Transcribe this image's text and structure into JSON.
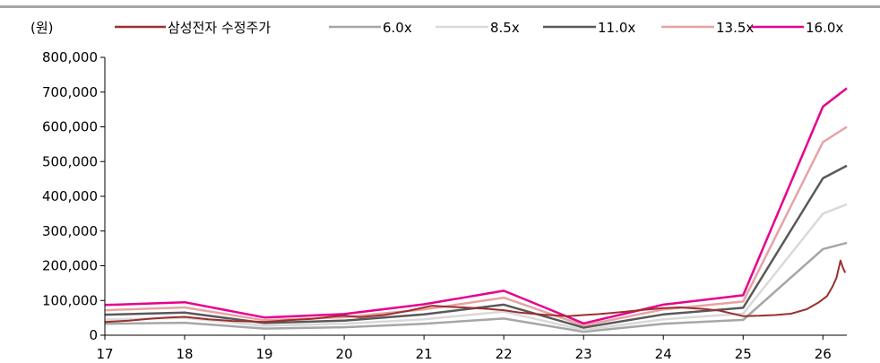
{
  "chart_data": {
    "type": "line",
    "unit_label": "(원)",
    "x_ticks": [
      "17",
      "18",
      "19",
      "20",
      "21",
      "22",
      "23",
      "24",
      "25",
      "26"
    ],
    "y_ticks": [
      "0",
      "100,000",
      "200,000",
      "300,000",
      "400,000",
      "500,000",
      "600,000",
      "700,000",
      "800,000"
    ],
    "ylim": [
      0,
      800000
    ],
    "xlim": [
      17,
      26.3
    ],
    "grid": false,
    "legend_position": "top",
    "series": [
      {
        "name": "삼성전자 수정주가",
        "color": "#9b2f2f",
        "x": [
          17.0,
          17.3,
          17.6,
          17.8,
          18.0,
          18.3,
          18.6,
          18.9,
          19.0,
          19.3,
          19.6,
          19.9,
          20.0,
          20.2,
          20.5,
          20.8,
          21.0,
          21.1,
          21.3,
          21.5,
          21.8,
          22.0,
          22.2,
          22.5,
          22.8,
          23.0,
          23.2,
          23.5,
          23.7,
          24.0,
          24.2,
          24.5,
          24.7,
          25.0,
          25.2,
          25.4,
          25.6,
          25.8,
          25.95,
          26.05,
          26.12,
          26.17,
          26.22,
          26.25,
          26.28
        ],
        "y": [
          38000,
          42000,
          48000,
          51000,
          53000,
          46000,
          41000,
          39000,
          38000,
          43000,
          47000,
          55000,
          56000,
          52000,
          58000,
          70000,
          80000,
          85000,
          82000,
          80000,
          76000,
          72000,
          65000,
          59000,
          55000,
          58000,
          61000,
          67000,
          72000,
          78000,
          80000,
          76000,
          71000,
          55000,
          56000,
          58000,
          62000,
          75000,
          95000,
          112000,
          140000,
          165000,
          215000,
          195000,
          180000
        ]
      },
      {
        "name": "6.0x",
        "color": "#a6a6a6",
        "x": [
          17,
          18,
          19,
          20,
          21,
          22,
          23,
          24,
          25,
          26,
          26.3
        ],
        "y": [
          33000,
          36000,
          19000,
          23000,
          33000,
          48000,
          10000,
          33000,
          44000,
          248000,
          266000
        ]
      },
      {
        "name": "8.5x",
        "color": "#d9d9d9",
        "x": [
          17,
          18,
          19,
          20,
          21,
          22,
          23,
          24,
          25,
          26,
          26.3
        ],
        "y": [
          45000,
          50000,
          27000,
          33000,
          46000,
          68000,
          15000,
          46000,
          62000,
          350000,
          377000
        ]
      },
      {
        "name": "11.0x",
        "color": "#595959",
        "x": [
          17,
          18,
          19,
          20,
          21,
          22,
          23,
          24,
          25,
          26,
          26.3
        ],
        "y": [
          59000,
          65000,
          35000,
          42000,
          60000,
          88000,
          22000,
          60000,
          79000,
          452000,
          488000
        ]
      },
      {
        "name": "13.5x",
        "color": "#e6a3a3",
        "x": [
          17,
          18,
          19,
          20,
          21,
          22,
          23,
          24,
          25,
          26,
          26.3
        ],
        "y": [
          72000,
          80000,
          43000,
          52000,
          74000,
          108000,
          28000,
          74000,
          97000,
          556000,
          600000
        ]
      },
      {
        "name": "16.0x",
        "color": "#e6008f",
        "x": [
          17,
          18,
          19,
          20,
          21,
          22,
          23,
          24,
          25,
          26,
          26.3
        ],
        "y": [
          87000,
          95000,
          51000,
          61000,
          89000,
          128000,
          34000,
          88000,
          115000,
          658000,
          711000
        ]
      }
    ]
  }
}
